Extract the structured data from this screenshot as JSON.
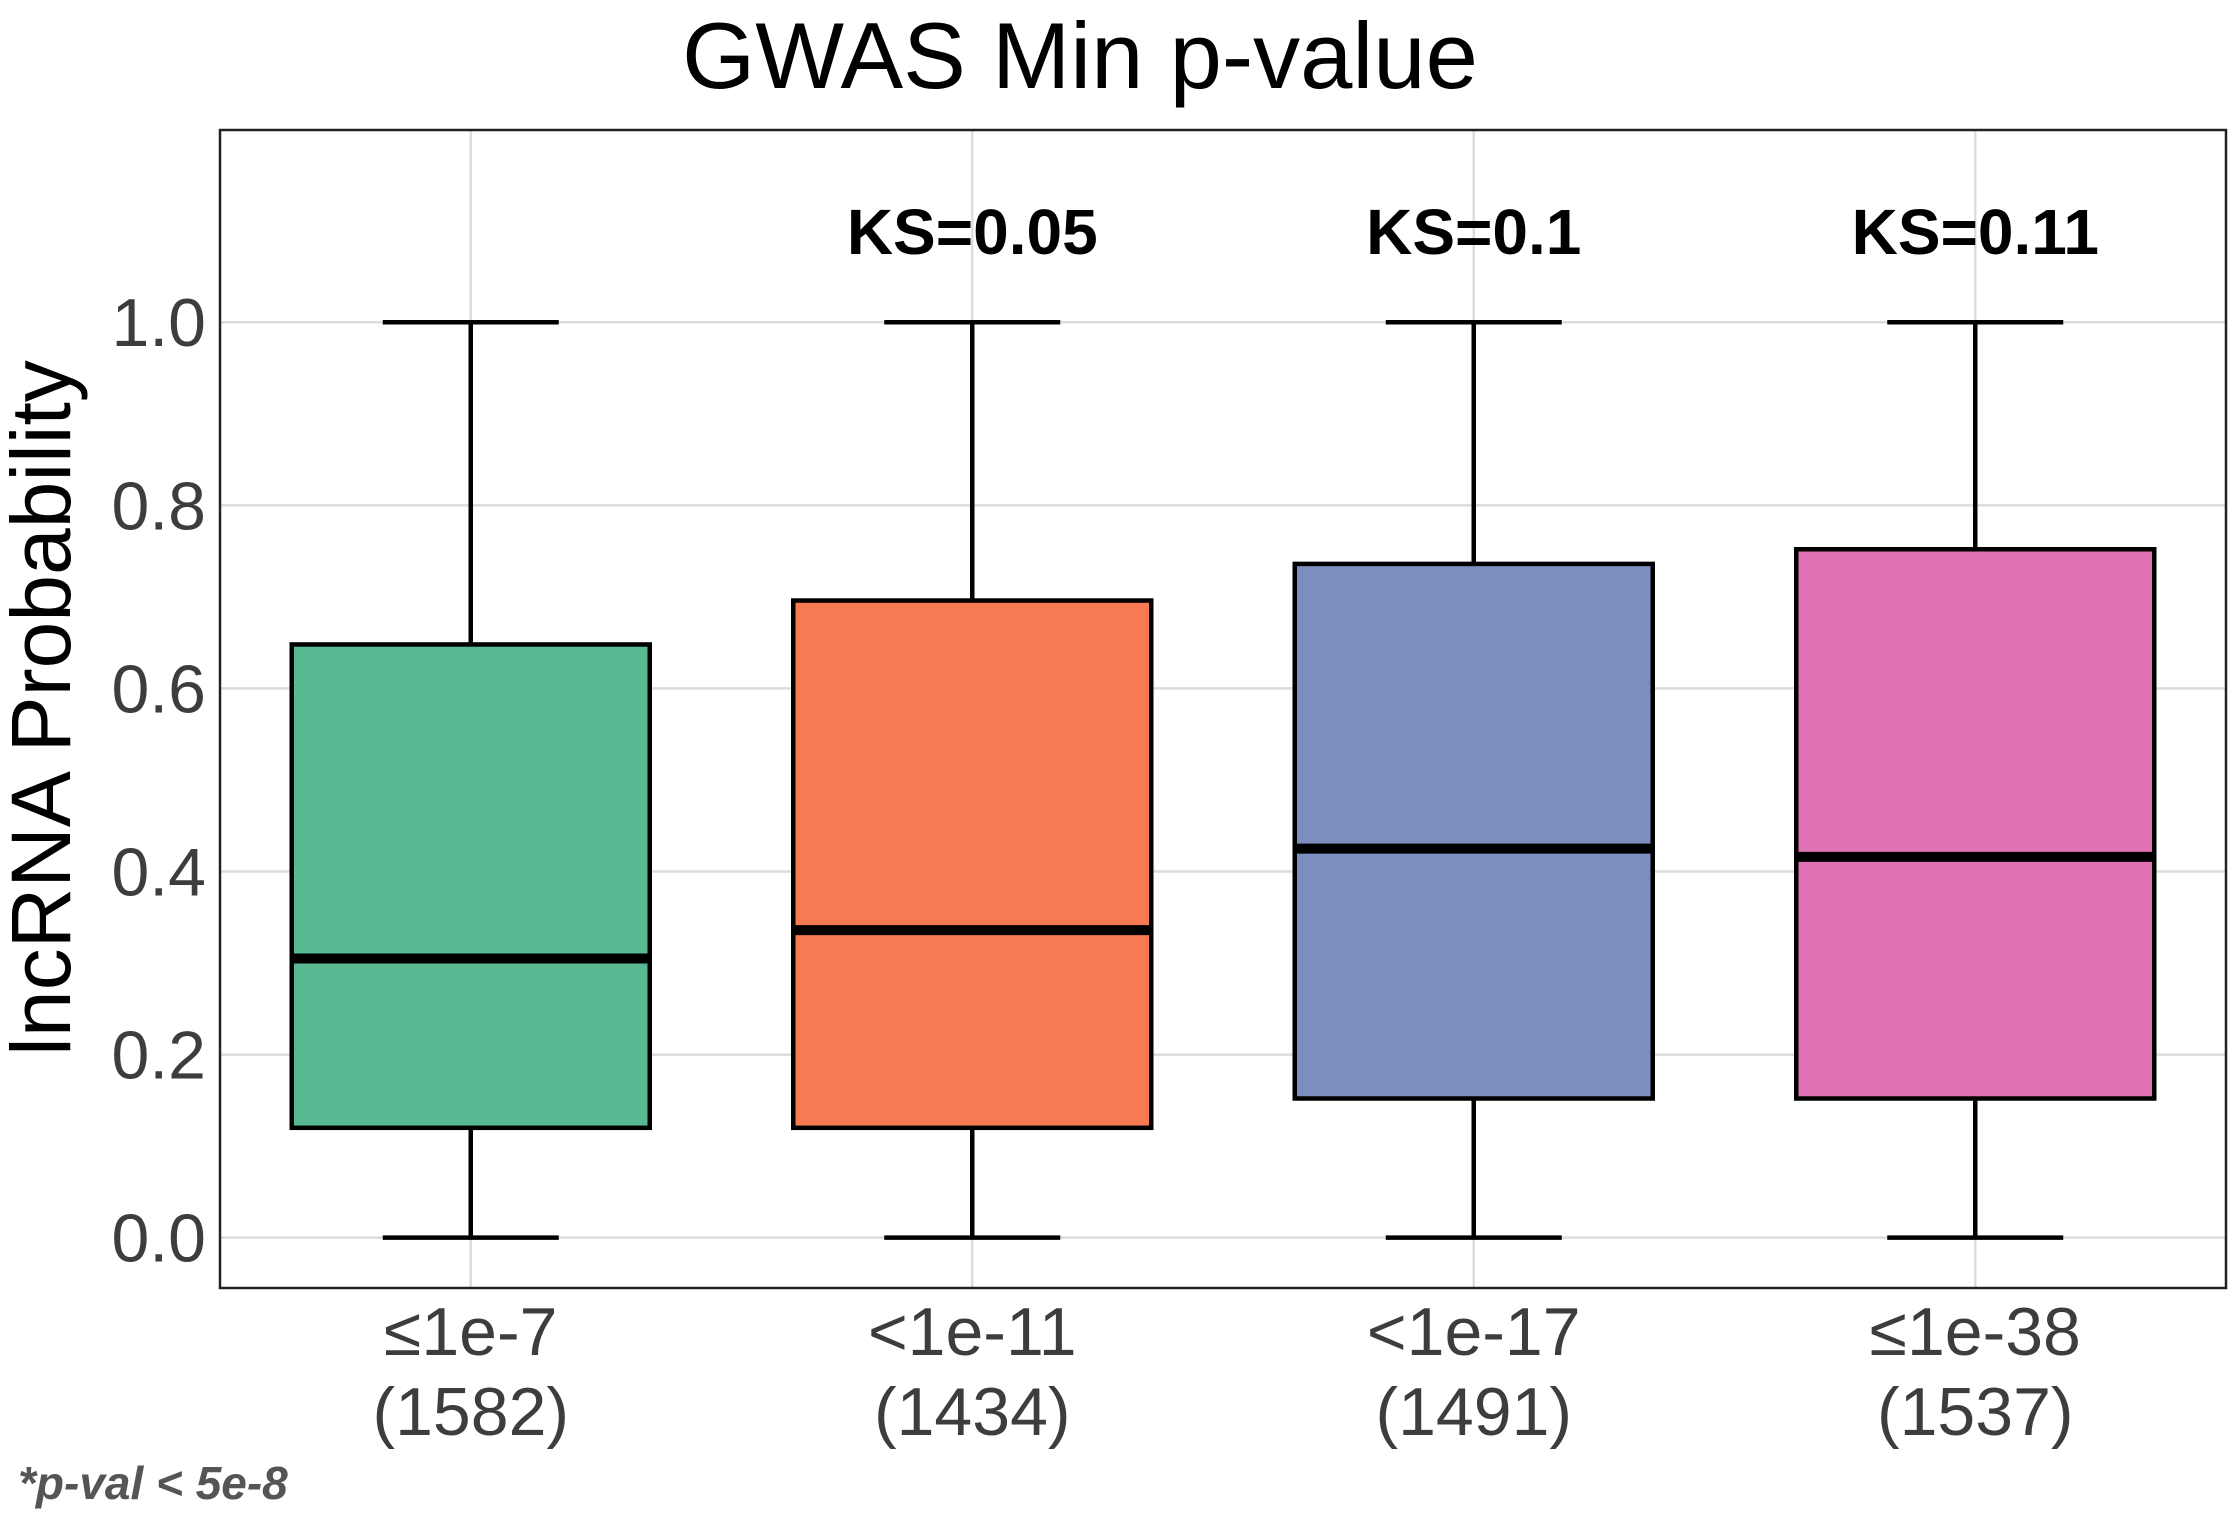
{
  "chart_data": {
    "type": "box",
    "title": "GWAS Min p-value",
    "xlabel": "",
    "ylabel": "lncRNA Probability",
    "ylim": [
      -0.055,
      1.21
    ],
    "yticks": [
      "0.0",
      "0.2",
      "0.4",
      "0.6",
      "0.8",
      "1.0"
    ],
    "grid": true,
    "legend": "none",
    "categories": [
      {
        "label": "≤1e-7",
        "count": "(1582)",
        "color": "#58b993",
        "min": 0.0,
        "q1": 0.12,
        "median": 0.305,
        "q3": 0.648,
        "max": 1.0,
        "annotation": ""
      },
      {
        "label": "<1e-11",
        "count": "(1434)",
        "color": "#f77a52",
        "min": 0.0,
        "q1": 0.12,
        "median": 0.336,
        "q3": 0.696,
        "max": 1.0,
        "annotation": "KS=0.05"
      },
      {
        "label": "<1e-17",
        "count": "(1491)",
        "color": "#7b8ebd",
        "min": 0.0,
        "q1": 0.152,
        "median": 0.425,
        "q3": 0.736,
        "max": 1.0,
        "annotation": "KS=0.1"
      },
      {
        "label": "≤1e-38",
        "count": "(1537)",
        "color": "#e072b4",
        "min": 0.0,
        "q1": 0.152,
        "median": 0.416,
        "q3": 0.752,
        "max": 1.0,
        "annotation": "KS=0.11"
      }
    ]
  },
  "footnote": "*p-val < 5e-8"
}
